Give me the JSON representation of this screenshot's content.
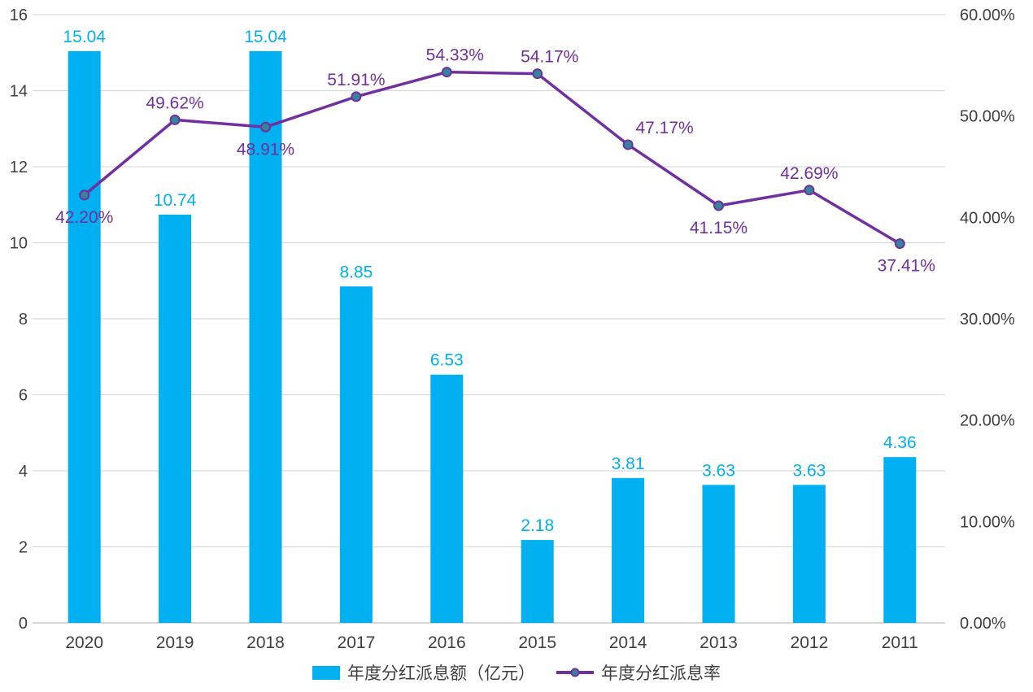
{
  "chart_data": {
    "type": "bar",
    "subtype": "bar+line combo, dual axis",
    "categories": [
      "2020",
      "2019",
      "2018",
      "2017",
      "2016",
      "2015",
      "2014",
      "2013",
      "2012",
      "2011"
    ],
    "series": [
      {
        "name": "年度分红派息额（亿元）",
        "type": "bar",
        "axis": "left",
        "color": "#00B0F0",
        "values": [
          15.04,
          10.74,
          15.04,
          8.85,
          6.53,
          2.18,
          3.81,
          3.63,
          3.63,
          4.36
        ],
        "labels": [
          "15.04",
          "10.74",
          "15.04",
          "8.85",
          "6.53",
          "2.18",
          "3.81",
          "3.63",
          "3.63",
          "4.36"
        ]
      },
      {
        "name": "年度分红派息率",
        "type": "line",
        "axis": "right",
        "color": "#7030A0",
        "marker_color": "#31859C",
        "values": [
          42.2,
          49.62,
          48.91,
          51.91,
          54.33,
          54.17,
          47.17,
          41.15,
          42.69,
          37.41
        ],
        "labels": [
          "42.20%",
          "49.62%",
          "48.91%",
          "51.91%",
          "54.33%",
          "54.17%",
          "47.17%",
          "41.15%",
          "42.69%",
          "37.41%"
        ],
        "label_placement": [
          "below",
          "above",
          "below",
          "above",
          "above",
          "above",
          "above",
          "below",
          "above",
          "below"
        ],
        "label_dx": [
          0,
          0,
          0,
          0,
          10,
          15,
          45,
          0,
          0,
          8
        ]
      }
    ],
    "left_axis": {
      "min": 0,
      "max": 16,
      "step": 2,
      "ticks": [
        "0",
        "2",
        "4",
        "6",
        "8",
        "10",
        "12",
        "14",
        "16"
      ]
    },
    "right_axis": {
      "min": 0,
      "max": 60,
      "step": 10,
      "ticks": [
        "0.00%",
        "10.00%",
        "20.00%",
        "30.00%",
        "40.00%",
        "50.00%",
        "60.00%"
      ]
    },
    "grid": true,
    "gridline_color": "#D9D9D9",
    "baseline_color": "#BFBFBF",
    "tick_label_color": "#3F3F3F",
    "legend_position": "bottom"
  }
}
